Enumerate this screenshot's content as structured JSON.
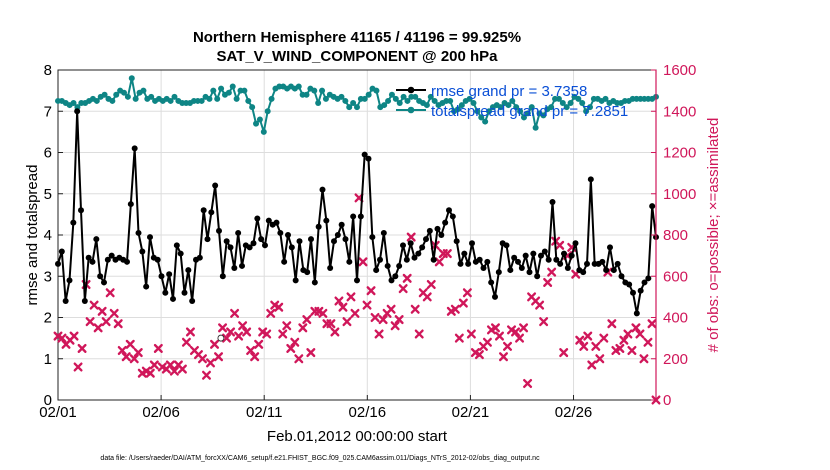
{
  "chart_data": {
    "type": "line",
    "title": "Northern Hemisphere 41165 / 41196 = 99.925%",
    "subtitle": "SAT_V_WIND_COMPONENT @ 200 hPa",
    "xlabel": "Feb.01,2012 00:00:00 start",
    "ylabel_left": "rmse and totalspread",
    "ylabel_right": "# of obs: o=possible; ×=assimilated",
    "xlim": [
      0,
      29
    ],
    "ylim_left": [
      0,
      8
    ],
    "ylim_right": [
      0,
      1600
    ],
    "x_ticks": [
      0,
      5,
      10,
      15,
      20,
      25
    ],
    "x_tick_labels": [
      "02/01",
      "02/06",
      "02/11",
      "02/16",
      "02/21",
      "02/26"
    ],
    "y_ticks_left": [
      "0",
      "1",
      "2",
      "3",
      "4",
      "5",
      "6",
      "7",
      "8"
    ],
    "y_ticks_right": [
      "0",
      "200",
      "400",
      "600",
      "800",
      "1000",
      "1200",
      "1400",
      "1600"
    ],
    "grid": true,
    "legend_position": "top-right",
    "footer": "data file: /Users/raeder/DAI/ATM_forcXX/CAM6_setup/f.e21.FHIST_BGC.f09_025.CAM6assim.011/Diags_NTrS_2012-02/obs_diag_output.nc",
    "colors": {
      "rmse": "#000000",
      "spread": "#0e8585",
      "obs": "#d0175a",
      "right_axis": "#d0175a"
    },
    "series": [
      {
        "name": "rmse grand pr = 3.7358",
        "axis": "left",
        "values": [
          3.3,
          3.6,
          2.4,
          2.9,
          4.3,
          7.0,
          4.6,
          2.4,
          3.45,
          3.35,
          3.9,
          3.0,
          2.85,
          3.4,
          3.5,
          3.4,
          3.45,
          3.4,
          3.35,
          4.75,
          6.1,
          4.05,
          3.6,
          2.75,
          3.95,
          3.45,
          3.4,
          3.0,
          2.6,
          3.05,
          2.45,
          3.75,
          3.55,
          2.6,
          3.15,
          2.4,
          3.4,
          3.45,
          4.6,
          3.9,
          4.55,
          5.2,
          4.1,
          3.0,
          3.85,
          3.7,
          3.2,
          4.05,
          3.25,
          3.75,
          3.7,
          3.8,
          4.4,
          3.9,
          3.75,
          4.35,
          4.25,
          4.3,
          4.05,
          3.35,
          4.0,
          3.7,
          2.9,
          3.85,
          3.15,
          3.1,
          3.9,
          2.85,
          4.2,
          5.1,
          4.35,
          3.2,
          3.85,
          4.0,
          4.25,
          3.9,
          3.35,
          4.45,
          2.9,
          4.45,
          5.95,
          5.85,
          3.95,
          3.15,
          3.4,
          4.05,
          3.25,
          2.9,
          3.0,
          3.25,
          3.75,
          3.4,
          3.8,
          3.45,
          3.55,
          3.7,
          3.9,
          4.1,
          3.4,
          4.15,
          4.0,
          4.3,
          4.6,
          4.45,
          3.85,
          3.3,
          3.55,
          3.3,
          3.8,
          3.35,
          3.4,
          3.2,
          3.35,
          2.85,
          2.5,
          3.1,
          3.8,
          3.75,
          3.15,
          3.45,
          3.35,
          3.2,
          3.5,
          3.1,
          3.55,
          3.0,
          3.5,
          3.6,
          3.4,
          4.8,
          3.4,
          3.3,
          3.55,
          3.2,
          3.5,
          3.8,
          3.15,
          3.1,
          3.3,
          5.35,
          3.3,
          3.3,
          3.35,
          3.15,
          3.7,
          3.15,
          3.3,
          3.0,
          2.85,
          2.8,
          2.6,
          2.1,
          2.65,
          2.85,
          2.95,
          4.7,
          3.95
        ]
      },
      {
        "name": "totalspread grand pr = 7.2851",
        "axis": "left",
        "values": [
          7.25,
          7.25,
          7.2,
          7.15,
          7.2,
          7.1,
          7.2,
          7.2,
          7.25,
          7.3,
          7.25,
          7.35,
          7.4,
          7.3,
          7.25,
          7.4,
          7.5,
          7.45,
          7.35,
          7.8,
          7.3,
          7.45,
          7.5,
          7.3,
          7.35,
          7.25,
          7.3,
          7.25,
          7.3,
          7.25,
          7.35,
          7.25,
          7.2,
          7.2,
          7.2,
          7.25,
          7.25,
          7.25,
          7.35,
          7.3,
          7.5,
          7.3,
          7.55,
          7.4,
          7.45,
          7.6,
          7.3,
          7.5,
          7.5,
          7.25,
          7.1,
          6.7,
          6.8,
          6.5,
          7.0,
          7.3,
          7.55,
          7.6,
          7.6,
          7.55,
          7.6,
          7.55,
          7.6,
          7.4,
          7.4,
          7.55,
          7.5,
          7.2,
          7.5,
          7.3,
          7.4,
          7.35,
          7.3,
          7.35,
          7.25,
          7.1,
          7.2,
          7.1,
          7.3,
          7.3,
          7.4,
          7.55,
          7.5,
          7.1,
          7.15,
          7.25,
          7.4,
          7.3,
          7.2,
          7.35,
          7.25,
          7.35,
          7.35,
          7.25,
          7.2,
          7.15,
          7.35,
          7.25,
          7.15,
          7.2,
          7.25,
          7.25,
          7.0,
          7.05,
          7.15,
          7.25,
          7.3,
          7.2,
          7.0,
          6.85,
          6.75,
          7.0,
          7.1,
          7.15,
          7.1,
          7.2,
          7.15,
          7.25,
          7.1,
          7.0,
          6.85,
          6.95,
          7.1,
          6.6,
          6.95,
          6.9,
          7.05,
          7.1,
          7.3,
          7.3,
          7.2,
          7.1,
          7.2,
          7.35,
          7.3,
          7.2,
          7.0,
          7.1,
          7.3,
          7.3,
          7.25,
          7.3,
          7.2,
          7.25,
          7.2,
          7.2,
          7.25,
          7.25,
          7.3,
          7.3,
          7.3,
          7.3,
          7.3,
          7.3,
          7.35
        ]
      },
      {
        "name": "assimilated obs",
        "axis": "right",
        "values": [
          310,
          300,
          270,
          290,
          310,
          160,
          250,
          560,
          380,
          460,
          350,
          430,
          380,
          520,
          420,
          370,
          240,
          210,
          270,
          200,
          230,
          130,
          140,
          130,
          170,
          250,
          160,
          150,
          170,
          140,
          170,
          150,
          280,
          330,
          240,
          220,
          200,
          120,
          180,
          270,
          210,
          350,
          300,
          330,
          420,
          310,
          360,
          330,
          240,
          210,
          270,
          330,
          320,
          420,
          460,
          450,
          320,
          360,
          250,
          280,
          200,
          350,
          390,
          230,
          430,
          430,
          420,
          370,
          370,
          330,
          480,
          450,
          380,
          500,
          420,
          980,
          670,
          460,
          530,
          400,
          320,
          390,
          420,
          440,
          360,
          390,
          540,
          590,
          790,
          440,
          320,
          520,
          500,
          560,
          750,
          670,
          710,
          710,
          430,
          440,
          300,
          470,
          520,
          320,
          230,
          220,
          260,
          280,
          340,
          350,
          310,
          210,
          260,
          340,
          330,
          300,
          350,
          80,
          500,
          480,
          460,
          380,
          570,
          620,
          770,
          750,
          230,
          700,
          740,
          610,
          290,
          260,
          310,
          170,
          260,
          200,
          300,
          620,
          370,
          240,
          250,
          290,
          320,
          240,
          350,
          320,
          200,
          280,
          370,
          0
        ]
      }
    ],
    "possible_obs_marker": {
      "x": 7.9,
      "value": 300
    }
  }
}
